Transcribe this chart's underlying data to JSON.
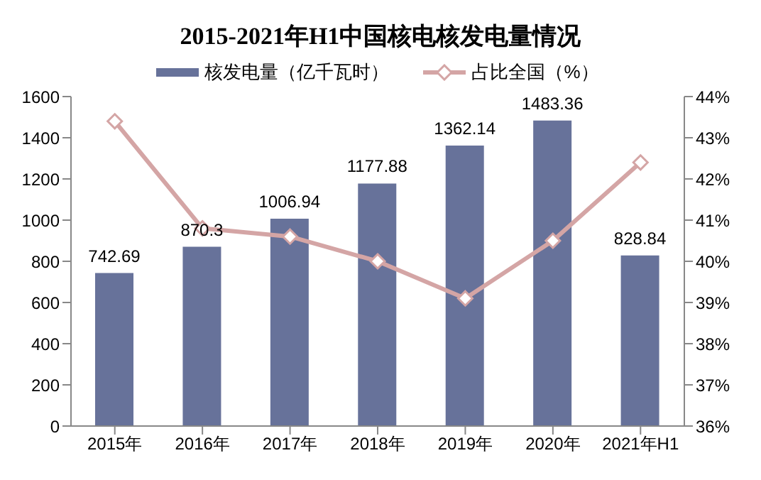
{
  "chart_data": {
    "type": "bar",
    "title": "2015-2021年H1中国核电核发电量情况",
    "categories": [
      "2015年",
      "2016年",
      "2017年",
      "2018年",
      "2019年",
      "2020年",
      "2021年H1"
    ],
    "series": [
      {
        "name": "核发电量（亿千瓦时）",
        "color": "#67729a",
        "values": [
          742.69,
          870.3,
          1006.94,
          1177.88,
          1362.14,
          1483.36,
          828.84
        ],
        "data_labels": true
      },
      {
        "name": "占比全国（%）",
        "type": "line",
        "axis": "y2",
        "color": "#d4a5a5",
        "marker": "diamond",
        "values": [
          43.4,
          40.8,
          40.6,
          40.0,
          39.1,
          40.5,
          42.4
        ]
      }
    ],
    "ylim": [
      0,
      1600
    ],
    "yticks": [
      0,
      200,
      400,
      600,
      800,
      1000,
      1200,
      1400,
      1600
    ],
    "y2lim": [
      36,
      44
    ],
    "y2ticks": [
      {
        "value": 36,
        "label": "36%"
      },
      {
        "value": 37,
        "label": "37%"
      },
      {
        "value": 38,
        "label": "38%"
      },
      {
        "value": 39,
        "label": "39%"
      },
      {
        "value": 40,
        "label": "40%"
      },
      {
        "value": 41,
        "label": "41%"
      },
      {
        "value": 42,
        "label": "42%"
      },
      {
        "value": 43,
        "label": "43%"
      },
      {
        "value": 44,
        "label": "44%"
      }
    ],
    "grid": false,
    "legend": "top"
  }
}
